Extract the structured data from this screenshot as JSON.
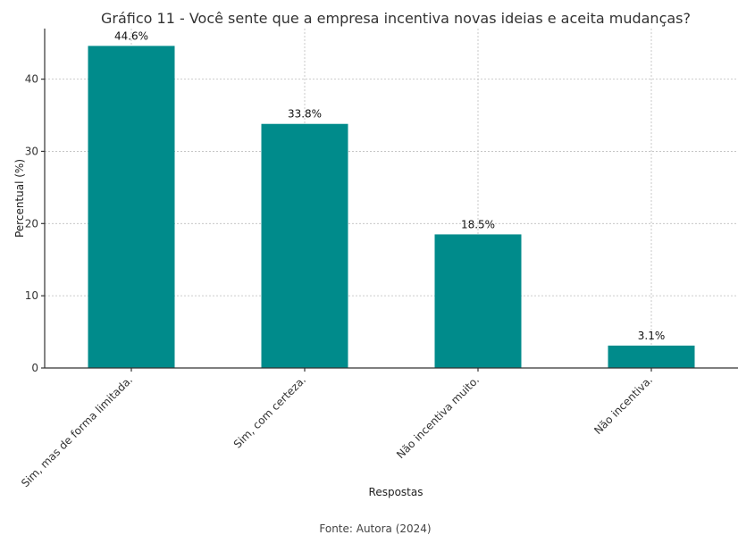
{
  "chart_data": {
    "type": "bar",
    "title": "Gráfico 11 - Você sente que a empresa incentiva novas ideias e aceita mudanças?",
    "xlabel": "Respostas",
    "ylabel": "Percentual (%)",
    "categories": [
      "Sim, mas de forma limitada.",
      "Sim, com certeza.",
      "Não incentiva muito.",
      "Não incentiva."
    ],
    "values": [
      44.6,
      33.8,
      18.5,
      3.1
    ],
    "value_labels": [
      "44.6%",
      "33.8%",
      "18.5%",
      "3.1%"
    ],
    "ylim": [
      0,
      47
    ],
    "yticks": [
      0,
      10,
      20,
      30,
      40
    ],
    "grid": true,
    "bar_color": "#008B8B"
  },
  "caption": "Fonte: Autora (2024)"
}
